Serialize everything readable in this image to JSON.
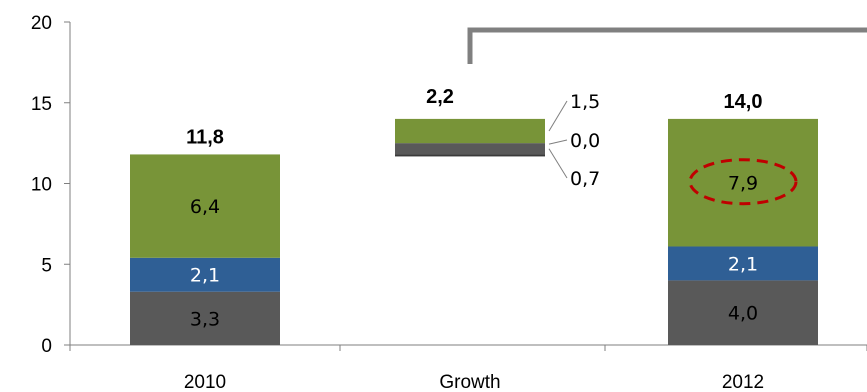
{
  "chart_data": {
    "type": "bar",
    "stacked": true,
    "title": "",
    "xlabel": "",
    "ylabel": "",
    "ylim": [
      0,
      20
    ],
    "yticks": [
      "0",
      "5",
      "10",
      "15",
      "20"
    ],
    "categories": [
      "2010",
      "Growth",
      "2012"
    ],
    "bars": [
      {
        "category": "2010",
        "total_label": "11,8",
        "segments": [
          {
            "value": 3.3,
            "label": "3,3",
            "color": "#595959",
            "label_color": "#000000"
          },
          {
            "value": 2.1,
            "label": "2,1",
            "color": "#2F5F95",
            "label_color": "#ffffff"
          },
          {
            "value": 6.4,
            "label": "6,4",
            "color": "#789438",
            "label_color": "#000000"
          }
        ]
      },
      {
        "category": "Growth",
        "total_label": "2,2",
        "base": 11.8,
        "segments": [
          {
            "value": 0.7,
            "label": "0,7",
            "color": "#595959",
            "label_color": "#000000"
          },
          {
            "value": 0.0,
            "label": "0,0",
            "color": "#2F5F95",
            "label_color": "#000000"
          },
          {
            "value": 1.5,
            "label": "1,5",
            "color": "#789438",
            "label_color": "#000000"
          }
        ]
      },
      {
        "category": "2012",
        "total_label": "14,0",
        "segments": [
          {
            "value": 4.0,
            "label": "4,0",
            "color": "#595959",
            "label_color": "#000000"
          },
          {
            "value": 2.1,
            "label": "2,1",
            "color": "#2F5F95",
            "label_color": "#ffffff"
          },
          {
            "value": 7.9,
            "label": "7,9",
            "color": "#789438",
            "label_color": "#000000",
            "highlighted": true
          }
        ]
      }
    ],
    "grid": false,
    "legend": "none",
    "colors": {
      "grey": "#595959",
      "blue": "#2F5F95",
      "green": "#789438",
      "highlight": "#C00000",
      "bracket": "#808080"
    }
  }
}
